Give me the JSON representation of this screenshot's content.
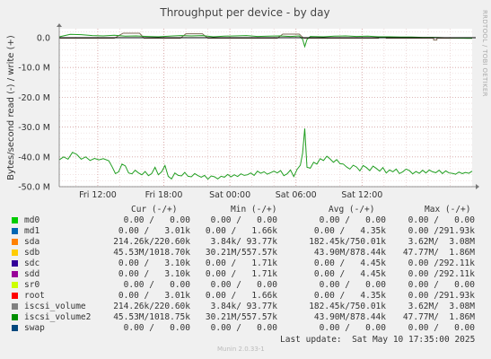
{
  "chart_data": {
    "type": "line",
    "title": "Throughput per device - by day",
    "ylabel": "Bytes/second read (-) / write (+)",
    "side_label": "RRDTOOL / TOBI OETIKER",
    "ylim": [
      -50000000,
      3000000
    ],
    "y_ticks": [
      {
        "value": 0,
        "label": "0.0"
      },
      {
        "value": -10000000,
        "label": "-10.0 M"
      },
      {
        "value": -20000000,
        "label": "-20.0 M"
      },
      {
        "value": -30000000,
        "label": "-30.0 M"
      },
      {
        "value": -40000000,
        "label": "-40.0 M"
      },
      {
        "value": -50000000,
        "label": "-50.0 M"
      }
    ],
    "x_range_hours": [
      8.5,
      14.5
    ],
    "x_ticks": [
      {
        "hour": 12,
        "label": "Fri 12:00"
      },
      {
        "hour": 18,
        "label": "Fri 18:00"
      },
      {
        "hour": 24,
        "label": "Sat 00:00"
      },
      {
        "hour": 30,
        "label": "Sat 06:00"
      },
      {
        "hour": 36,
        "label": "Sat 12:00"
      }
    ],
    "series": [
      {
        "name": "sda",
        "color": "#7f6a55",
        "values": [
          [
            8.5,
            -0.2
          ],
          [
            13.5,
            -0.2
          ],
          [
            14.3,
            1.5
          ],
          [
            15.8,
            1.5
          ],
          [
            16.2,
            -0.2
          ],
          [
            19.5,
            -0.2
          ],
          [
            20,
            1.3
          ],
          [
            21.5,
            1.3
          ],
          [
            22,
            -0.2
          ],
          [
            28.3,
            -0.2
          ],
          [
            28.8,
            1.2
          ],
          [
            30.3,
            1.2
          ],
          [
            30.7,
            -0.2
          ],
          [
            37.5,
            -0.2
          ],
          [
            37.5,
            0.2
          ],
          [
            38.2,
            0.2
          ],
          [
            38.2,
            -0.2
          ],
          [
            42.5,
            -0.2
          ],
          [
            42.5,
            -0.8
          ],
          [
            42.8,
            -0.8
          ],
          [
            42.8,
            -0.2
          ],
          [
            46,
            -0.2
          ]
        ]
      },
      {
        "name": "sdb",
        "color": "#219e21",
        "values": [
          [
            8.5,
            0.3
          ],
          [
            9.5,
            1.1
          ],
          [
            10.5,
            1.0
          ],
          [
            11.5,
            0.7
          ],
          [
            12.5,
            0.6
          ],
          [
            13.5,
            0.8
          ],
          [
            14.5,
            0.5
          ],
          [
            15.5,
            0.6
          ],
          [
            16.5,
            0.4
          ],
          [
            17.5,
            0.3
          ],
          [
            18.5,
            0.5
          ],
          [
            19.5,
            0.7
          ],
          [
            20.5,
            0.6
          ],
          [
            21.5,
            0.7
          ],
          [
            22.5,
            0.3
          ],
          [
            23.5,
            0.5
          ],
          [
            24.5,
            0.6
          ],
          [
            25.5,
            0.7
          ],
          [
            26.5,
            0.4
          ],
          [
            27.5,
            0.5
          ],
          [
            28.5,
            0.6
          ],
          [
            29.5,
            0.4
          ],
          [
            30.3,
            0.6
          ],
          [
            30.6,
            -0.5
          ],
          [
            30.8,
            -3.0
          ],
          [
            31.0,
            -0.6
          ],
          [
            31.3,
            0.4
          ],
          [
            32.5,
            0.3
          ],
          [
            33.5,
            0.5
          ],
          [
            34.5,
            0.6
          ],
          [
            35.5,
            0.4
          ],
          [
            36.5,
            0.5
          ],
          [
            37.5,
            0.3
          ],
          [
            38.5,
            0.3
          ],
          [
            39.5,
            0.2
          ],
          [
            40.5,
            0.2
          ],
          [
            41.5,
            0.1
          ],
          [
            42.5,
            0.1
          ],
          [
            43.5,
            0.0
          ],
          [
            44.5,
            -0.1
          ],
          [
            45.5,
            -0.2
          ],
          [
            46,
            -0.2
          ]
        ]
      },
      {
        "name": "iscsi_volume2",
        "color": "#219e21",
        "values": [
          [
            8.5,
            -41.0
          ],
          [
            8.9,
            -40.0
          ],
          [
            9.3,
            -40.8
          ],
          [
            9.7,
            -38.5
          ],
          [
            10.1,
            -39.2
          ],
          [
            10.5,
            -40.8
          ],
          [
            10.9,
            -40.0
          ],
          [
            11.3,
            -41.2
          ],
          [
            11.7,
            -40.5
          ],
          [
            12.1,
            -41.0
          ],
          [
            12.5,
            -40.6
          ],
          [
            13.0,
            -41.3
          ],
          [
            13.3,
            -43.3
          ],
          [
            13.6,
            -45.6
          ],
          [
            13.9,
            -45.0
          ],
          [
            14.2,
            -42.4
          ],
          [
            14.5,
            -43.0
          ],
          [
            14.8,
            -45.4
          ],
          [
            15.1,
            -45.7
          ],
          [
            15.4,
            -44.5
          ],
          [
            15.7,
            -45.4
          ],
          [
            16.0,
            -46.0
          ],
          [
            16.3,
            -44.9
          ],
          [
            16.6,
            -46.3
          ],
          [
            16.9,
            -45.6
          ],
          [
            17.2,
            -43.5
          ],
          [
            17.5,
            -46.0
          ],
          [
            17.8,
            -45.0
          ],
          [
            18.1,
            -42.9
          ],
          [
            18.4,
            -46.5
          ],
          [
            18.7,
            -47.4
          ],
          [
            19.0,
            -45.4
          ],
          [
            19.3,
            -46.2
          ],
          [
            19.6,
            -46.4
          ],
          [
            19.9,
            -45.2
          ],
          [
            20.2,
            -46.5
          ],
          [
            20.5,
            -46.7
          ],
          [
            20.8,
            -45.6
          ],
          [
            21.1,
            -46.3
          ],
          [
            21.4,
            -46.8
          ],
          [
            21.7,
            -46.2
          ],
          [
            22.0,
            -47.5
          ],
          [
            22.3,
            -46.4
          ],
          [
            22.6,
            -46.7
          ],
          [
            22.9,
            -47.4
          ],
          [
            23.2,
            -46.5
          ],
          [
            23.5,
            -46.8
          ],
          [
            23.8,
            -45.9
          ],
          [
            24.1,
            -46.7
          ],
          [
            24.4,
            -46.0
          ],
          [
            24.7,
            -46.6
          ],
          [
            25.0,
            -45.7
          ],
          [
            25.3,
            -46.2
          ],
          [
            25.6,
            -46.0
          ],
          [
            25.9,
            -45.4
          ],
          [
            26.2,
            -46.2
          ],
          [
            26.5,
            -44.8
          ],
          [
            26.8,
            -45.5
          ],
          [
            27.1,
            -45.0
          ],
          [
            27.4,
            -45.8
          ],
          [
            27.7,
            -45.3
          ],
          [
            28.0,
            -44.8
          ],
          [
            28.3,
            -45.4
          ],
          [
            28.6,
            -44.6
          ],
          [
            28.9,
            -46.3
          ],
          [
            29.2,
            -45.7
          ],
          [
            29.5,
            -44.4
          ],
          [
            29.8,
            -46.6
          ],
          [
            30.1,
            -44.2
          ],
          [
            30.4,
            -42.8
          ],
          [
            30.6,
            -38.8
          ],
          [
            30.8,
            -30.5
          ],
          [
            31.0,
            -43.5
          ],
          [
            31.3,
            -43.8
          ],
          [
            31.6,
            -41.8
          ],
          [
            31.9,
            -42.4
          ],
          [
            32.2,
            -40.6
          ],
          [
            32.5,
            -41.2
          ],
          [
            32.8,
            -39.8
          ],
          [
            33.1,
            -40.7
          ],
          [
            33.4,
            -41.8
          ],
          [
            33.7,
            -40.9
          ],
          [
            34.0,
            -42.3
          ],
          [
            34.3,
            -42.4
          ],
          [
            34.6,
            -43.4
          ],
          [
            34.9,
            -44.1
          ],
          [
            35.2,
            -42.8
          ],
          [
            35.5,
            -43.4
          ],
          [
            35.8,
            -44.7
          ],
          [
            36.1,
            -42.9
          ],
          [
            36.4,
            -43.6
          ],
          [
            36.7,
            -44.6
          ],
          [
            37.0,
            -43.1
          ],
          [
            37.3,
            -43.9
          ],
          [
            37.6,
            -44.8
          ],
          [
            37.9,
            -43.6
          ],
          [
            38.2,
            -45.4
          ],
          [
            38.5,
            -44.4
          ],
          [
            38.8,
            -45.0
          ],
          [
            39.1,
            -44.1
          ],
          [
            39.4,
            -45.6
          ],
          [
            39.7,
            -45.0
          ],
          [
            40.0,
            -44.1
          ],
          [
            40.3,
            -44.6
          ],
          [
            40.6,
            -45.7
          ],
          [
            40.9,
            -44.9
          ],
          [
            41.2,
            -45.5
          ],
          [
            41.5,
            -44.5
          ],
          [
            41.8,
            -45.4
          ],
          [
            42.1,
            -44.4
          ],
          [
            42.4,
            -45.0
          ],
          [
            42.7,
            -45.3
          ],
          [
            43.0,
            -44.5
          ],
          [
            43.3,
            -45.6
          ],
          [
            43.6,
            -44.7
          ],
          [
            43.9,
            -45.4
          ],
          [
            44.2,
            -45.5
          ],
          [
            44.5,
            -45.8
          ],
          [
            44.8,
            -45.1
          ],
          [
            45.1,
            -45.6
          ],
          [
            45.4,
            -45.2
          ],
          [
            45.7,
            -45.5
          ],
          [
            46.0,
            -44.8
          ]
        ]
      }
    ]
  },
  "legend": {
    "headers": {
      "cur": "Cur (-/+)",
      "min": "Min (-/+)",
      "avg": "Avg (-/+)",
      "max": "Max (-/+)"
    },
    "rows": [
      {
        "name": "md0",
        "color": "#00cc00",
        "cur": "0.00 /   0.00",
        "min": "0.00 /   0.00",
        "avg": "0.00 /   0.00",
        "max": "0.00 /   0.00"
      },
      {
        "name": "md1",
        "color": "#0066b3",
        "cur": "0.00 /   3.01k",
        "min": "0.00 /   1.66k",
        "avg": "0.00 /   4.35k",
        "max": "0.00 /291.93k"
      },
      {
        "name": "sda",
        "color": "#ff8000",
        "cur": "214.26k/220.60k",
        "min": "3.84k/ 93.77k",
        "avg": "182.45k/750.01k",
        "max": "3.62M/  3.08M"
      },
      {
        "name": "sdb",
        "color": "#ffcc00",
        "cur": "45.53M/1018.70k",
        "min": "30.21M/557.57k",
        "avg": "43.90M/878.44k",
        "max": "47.77M/  1.86M"
      },
      {
        "name": "sdc",
        "color": "#330099",
        "cur": "0.00 /   3.10k",
        "min": "0.00 /   1.71k",
        "avg": "0.00 /   4.45k",
        "max": "0.00 /292.11k"
      },
      {
        "name": "sdd",
        "color": "#990099",
        "cur": "0.00 /   3.10k",
        "min": "0.00 /   1.71k",
        "avg": "0.00 /   4.45k",
        "max": "0.00 /292.11k"
      },
      {
        "name": "sr0",
        "color": "#ccff00",
        "cur": "0.00 /   0.00",
        "min": "0.00 /   0.00",
        "avg": "0.00 /   0.00",
        "max": "0.00 /   0.00"
      },
      {
        "name": "root",
        "color": "#ff0000",
        "cur": "0.00 /   3.01k",
        "min": "0.00 /   1.66k",
        "avg": "0.00 /   4.35k",
        "max": "0.00 /291.93k"
      },
      {
        "name": "iscsi_volume",
        "color": "#808080",
        "cur": "214.26k/220.60k",
        "min": "3.84k/ 93.77k",
        "avg": "182.45k/750.01k",
        "max": "3.62M/  3.08M"
      },
      {
        "name": "iscsi_volume2",
        "color": "#008f00",
        "cur": "45.53M/1018.75k",
        "min": "30.21M/557.57k",
        "avg": "43.90M/878.44k",
        "max": "47.77M/  1.86M"
      },
      {
        "name": "swap",
        "color": "#00487d",
        "cur": "0.00 /   0.00",
        "min": "0.00 /   0.00",
        "avg": "0.00 /   0.00",
        "max": "0.00 /   0.00"
      }
    ]
  },
  "footer": {
    "last_update": "Last update:  Sat May 10 17:35:00 2025",
    "munin_version": "Munin 2.0.33-1"
  }
}
